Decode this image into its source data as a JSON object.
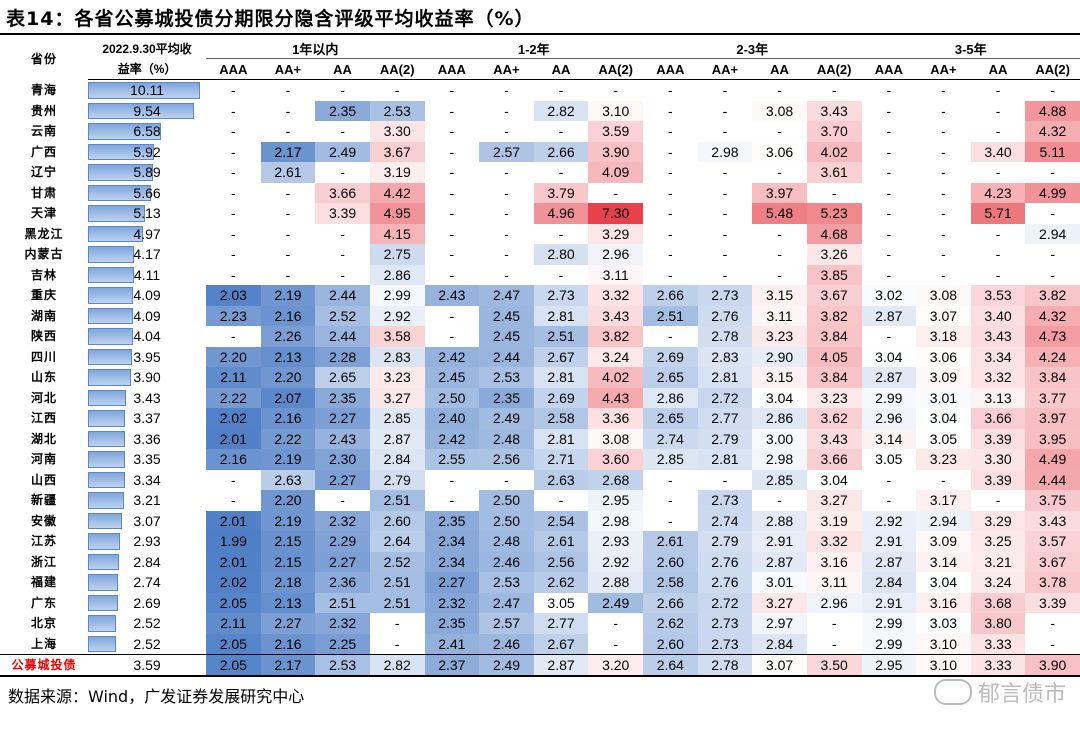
{
  "title": "表14：各省公募城投债分期限分隐含评级平均收益率（%）",
  "header": {
    "province": "省份",
    "avg_line1": "2022.9.30平均收",
    "avg_line2": "益率（%）",
    "groups": [
      "1年以内",
      "1-2年",
      "2-3年",
      "3-5年"
    ],
    "ratings": [
      "AAA",
      "AA+",
      "AA",
      "AA(2)"
    ]
  },
  "rows": [
    {
      "p": "青海",
      "avg": "10.11",
      "v": [
        "-",
        "-",
        "-",
        "-",
        "-",
        "-",
        "-",
        "-",
        "-",
        "-",
        "-",
        "-",
        "-",
        "-",
        "-",
        "-"
      ]
    },
    {
      "p": "贵州",
      "avg": "9.54",
      "v": [
        "-",
        "-",
        "2.35",
        "2.53",
        "-",
        "-",
        "2.82",
        "3.10",
        "-",
        "-",
        "3.08",
        "3.43",
        "-",
        "-",
        "-",
        "4.88"
      ]
    },
    {
      "p": "云南",
      "avg": "6.58",
      "v": [
        "-",
        "-",
        "-",
        "3.30",
        "-",
        "-",
        "-",
        "3.59",
        "-",
        "-",
        "-",
        "3.70",
        "-",
        "-",
        "-",
        "4.32"
      ]
    },
    {
      "p": "广西",
      "avg": "5.92",
      "v": [
        "-",
        "2.17",
        "2.49",
        "3.67",
        "-",
        "2.57",
        "2.66",
        "3.90",
        "-",
        "2.98",
        "3.06",
        "4.02",
        "-",
        "-",
        "3.40",
        "5.11"
      ]
    },
    {
      "p": "辽宁",
      "avg": "5.89",
      "v": [
        "-",
        "2.61",
        "-",
        "3.19",
        "-",
        "-",
        "-",
        "4.09",
        "-",
        "-",
        "-",
        "3.61",
        "-",
        "-",
        "-",
        "-"
      ]
    },
    {
      "p": "甘肃",
      "avg": "5.66",
      "v": [
        "-",
        "-",
        "3.66",
        "4.42",
        "-",
        "-",
        "3.79",
        "-",
        "-",
        "-",
        "3.97",
        "-",
        "-",
        "-",
        "4.23",
        "4.99"
      ]
    },
    {
      "p": "天津",
      "avg": "5.13",
      "v": [
        "-",
        "-",
        "3.39",
        "4.95",
        "-",
        "-",
        "4.96",
        "7.30",
        "-",
        "-",
        "5.48",
        "5.23",
        "-",
        "-",
        "5.71",
        "-"
      ]
    },
    {
      "p": "黑龙江",
      "avg": "4.97",
      "v": [
        "-",
        "-",
        "-",
        "4.15",
        "-",
        "-",
        "-",
        "3.29",
        "-",
        "-",
        "-",
        "4.68",
        "-",
        "-",
        "-",
        "2.94"
      ]
    },
    {
      "p": "内蒙古",
      "avg": "4.17",
      "v": [
        "-",
        "-",
        "-",
        "2.75",
        "-",
        "-",
        "2.80",
        "2.96",
        "-",
        "-",
        "-",
        "3.26",
        "-",
        "-",
        "-",
        "-"
      ]
    },
    {
      "p": "吉林",
      "avg": "4.11",
      "v": [
        "-",
        "-",
        "-",
        "2.86",
        "-",
        "-",
        "-",
        "3.11",
        "-",
        "-",
        "-",
        "3.85",
        "-",
        "-",
        "-",
        "-"
      ]
    },
    {
      "p": "重庆",
      "avg": "4.09",
      "v": [
        "2.03",
        "2.19",
        "2.44",
        "2.99",
        "2.43",
        "2.47",
        "2.73",
        "3.32",
        "2.66",
        "2.73",
        "3.15",
        "3.67",
        "3.02",
        "3.08",
        "3.53",
        "3.82"
      ]
    },
    {
      "p": "湖南",
      "avg": "4.09",
      "v": [
        "2.23",
        "2.16",
        "2.52",
        "2.92",
        "-",
        "2.45",
        "2.81",
        "3.43",
        "2.51",
        "2.76",
        "3.11",
        "3.82",
        "2.87",
        "3.07",
        "3.40",
        "4.32"
      ]
    },
    {
      "p": "陕西",
      "avg": "4.04",
      "v": [
        "-",
        "2.26",
        "2.44",
        "3.58",
        "-",
        "2.45",
        "2.51",
        "3.82",
        "-",
        "2.78",
        "3.23",
        "3.84",
        "-",
        "3.18",
        "3.43",
        "4.73"
      ]
    },
    {
      "p": "四川",
      "avg": "3.95",
      "v": [
        "2.20",
        "2.13",
        "2.28",
        "2.83",
        "2.42",
        "2.44",
        "2.67",
        "3.24",
        "2.69",
        "2.83",
        "2.90",
        "4.05",
        "3.04",
        "3.06",
        "3.34",
        "4.24"
      ]
    },
    {
      "p": "山东",
      "avg": "3.90",
      "v": [
        "2.11",
        "2.20",
        "2.65",
        "3.23",
        "2.45",
        "2.53",
        "2.81",
        "4.02",
        "2.65",
        "2.81",
        "3.15",
        "3.84",
        "2.87",
        "3.09",
        "3.32",
        "3.84"
      ]
    },
    {
      "p": "河北",
      "avg": "3.43",
      "v": [
        "2.22",
        "2.07",
        "2.35",
        "3.27",
        "2.50",
        "2.35",
        "2.69",
        "4.43",
        "2.86",
        "2.72",
        "3.04",
        "3.23",
        "2.99",
        "3.01",
        "3.13",
        "3.77"
      ]
    },
    {
      "p": "江西",
      "avg": "3.37",
      "v": [
        "2.02",
        "2.16",
        "2.27",
        "2.85",
        "2.40",
        "2.49",
        "2.58",
        "3.36",
        "2.65",
        "2.77",
        "2.86",
        "3.62",
        "2.96",
        "3.04",
        "3.66",
        "3.97"
      ]
    },
    {
      "p": "湖北",
      "avg": "3.36",
      "v": [
        "2.01",
        "2.22",
        "2.43",
        "2.87",
        "2.42",
        "2.48",
        "2.81",
        "3.08",
        "2.74",
        "2.79",
        "3.00",
        "3.43",
        "3.14",
        "3.05",
        "3.39",
        "3.95"
      ]
    },
    {
      "p": "河南",
      "avg": "3.35",
      "v": [
        "2.16",
        "2.19",
        "2.30",
        "2.84",
        "2.55",
        "2.56",
        "2.71",
        "3.60",
        "2.85",
        "2.81",
        "2.98",
        "3.66",
        "3.05",
        "3.23",
        "3.30",
        "4.49"
      ]
    },
    {
      "p": "山西",
      "avg": "3.34",
      "v": [
        "-",
        "2.63",
        "2.27",
        "2.79",
        "-",
        "-",
        "2.63",
        "2.68",
        "-",
        "-",
        "2.85",
        "3.04",
        "-",
        "-",
        "3.39",
        "4.44"
      ]
    },
    {
      "p": "新疆",
      "avg": "3.21",
      "v": [
        "-",
        "2.20",
        "-",
        "2.51",
        "-",
        "2.50",
        "-",
        "2.95",
        "-",
        "2.73",
        "-",
        "3.27",
        "-",
        "3.17",
        "-",
        "3.75"
      ]
    },
    {
      "p": "安徽",
      "avg": "3.07",
      "v": [
        "2.01",
        "2.19",
        "2.32",
        "2.60",
        "2.35",
        "2.50",
        "2.54",
        "2.98",
        "-",
        "2.74",
        "2.88",
        "3.19",
        "2.92",
        "2.94",
        "3.29",
        "3.43"
      ]
    },
    {
      "p": "江苏",
      "avg": "2.93",
      "v": [
        "1.99",
        "2.15",
        "2.29",
        "2.64",
        "2.34",
        "2.48",
        "2.61",
        "2.93",
        "2.61",
        "2.79",
        "2.91",
        "3.32",
        "2.91",
        "3.09",
        "3.25",
        "3.57"
      ]
    },
    {
      "p": "浙江",
      "avg": "2.84",
      "v": [
        "2.01",
        "2.15",
        "2.27",
        "2.52",
        "2.34",
        "2.46",
        "2.56",
        "2.92",
        "2.60",
        "2.76",
        "2.87",
        "3.16",
        "2.87",
        "3.14",
        "3.21",
        "3.67"
      ]
    },
    {
      "p": "福建",
      "avg": "2.74",
      "v": [
        "2.02",
        "2.18",
        "2.36",
        "2.51",
        "2.27",
        "2.53",
        "2.62",
        "2.88",
        "2.58",
        "2.76",
        "3.01",
        "3.11",
        "2.84",
        "3.04",
        "3.24",
        "3.78"
      ]
    },
    {
      "p": "广东",
      "avg": "2.69",
      "v": [
        "2.05",
        "2.13",
        "2.51",
        "2.51",
        "2.32",
        "2.47",
        "3.05",
        "2.49",
        "2.66",
        "2.72",
        "3.27",
        "2.96",
        "2.91",
        "3.16",
        "3.68",
        "3.39"
      ]
    },
    {
      "p": "北京",
      "avg": "2.52",
      "v": [
        "2.11",
        "2.27",
        "2.32",
        "-",
        "2.35",
        "2.57",
        "2.77",
        "-",
        "2.62",
        "2.73",
        "2.97",
        "-",
        "2.99",
        "3.03",
        "3.80",
        "-"
      ]
    },
    {
      "p": "上海",
      "avg": "2.52",
      "v": [
        "2.05",
        "2.16",
        "2.25",
        "-",
        "2.41",
        "2.46",
        "2.67",
        "-",
        "2.60",
        "2.73",
        "2.84",
        "-",
        "2.99",
        "3.10",
        "3.33",
        "-"
      ]
    }
  ],
  "total": {
    "p": "公募城投债",
    "avg": "3.59",
    "v": [
      "2.05",
      "2.17",
      "2.53",
      "2.82",
      "2.37",
      "2.49",
      "2.87",
      "3.20",
      "2.64",
      "2.78",
      "3.07",
      "3.50",
      "2.95",
      "3.10",
      "3.33",
      "3.90"
    ]
  },
  "source": "数据来源：Wind，广发证券发展研究中心",
  "watermark": "郁言债市",
  "colors": {
    "low": "#4f7fc6",
    "mid": "#ffffff",
    "high": "#e8414b"
  }
}
